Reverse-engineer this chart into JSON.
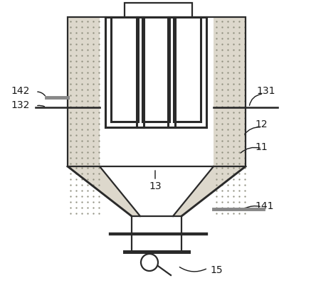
{
  "bg_color": "#ffffff",
  "line_color": "#2a2a2a",
  "dot_fill": "#ddd8cc",
  "label_fontsize": 10,
  "lw": 1.6,
  "fig_w": 4.44,
  "fig_h": 4.06,
  "dpi": 100
}
